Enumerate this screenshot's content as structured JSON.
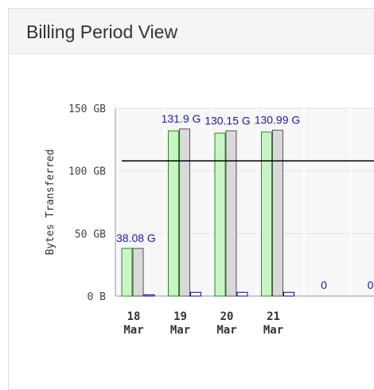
{
  "panel": {
    "title": "Billing Period View"
  },
  "chart_data": {
    "type": "bar",
    "ylabel": "Bytes Transferred",
    "ytick_labels": [
      "0 B",
      "50 GB",
      "100 GB",
      "150 GB"
    ],
    "ylim": [
      0,
      150
    ],
    "categories": [
      "18\nMar",
      "19\nMar",
      "20\nMar",
      "21\nMar",
      "",
      ""
    ],
    "series": [
      {
        "values": [
          38.08,
          131.9,
          130.15,
          130.99,
          0,
          0
        ],
        "color": "#c9f4c4"
      },
      {
        "values": [
          38.08,
          133.5,
          132.0,
          132.5,
          0,
          0
        ],
        "color": "#d9d9d9"
      },
      {
        "values": [
          1.0,
          3.0,
          3.0,
          3.0,
          0,
          0
        ],
        "color": "#ffffff"
      }
    ],
    "data_labels": [
      "38.08 G",
      "131.9 G",
      "130.15 G",
      "130.99 G",
      "0",
      "0"
    ],
    "reference_line": 108,
    "grid": true
  }
}
